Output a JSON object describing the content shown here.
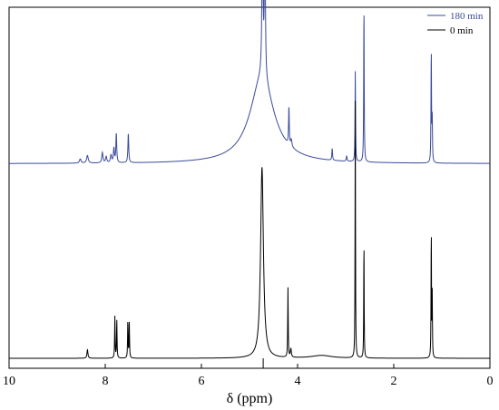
{
  "chart_data": {
    "type": "line",
    "title": "",
    "xlabel": "δ (ppm)",
    "ylabel": "",
    "x_reversed": true,
    "xlim": [
      10,
      0
    ],
    "x_ticks": [
      10,
      8,
      6,
      4,
      2,
      0
    ],
    "x_tick_labels": [
      "10",
      "8",
      "6",
      "4",
      "2",
      "0"
    ],
    "y_ticks_visible": false,
    "grid": false,
    "legend": {
      "position": "top-right"
    },
    "series": [
      {
        "name": "180 min",
        "color": "#3a4a9a",
        "baseline": 0.56,
        "peaks": [
          {
            "ppm": 8.52,
            "height": 0.012,
            "width": 0.02
          },
          {
            "ppm": 8.37,
            "height": 0.022,
            "width": 0.02
          },
          {
            "ppm": 8.06,
            "height": 0.03,
            "width": 0.015
          },
          {
            "ppm": 7.98,
            "height": 0.018,
            "width": 0.015
          },
          {
            "ppm": 7.88,
            "height": 0.022,
            "width": 0.015
          },
          {
            "ppm": 7.82,
            "height": 0.042,
            "width": 0.012
          },
          {
            "ppm": 7.77,
            "height": 0.085,
            "width": 0.01
          },
          {
            "ppm": 7.52,
            "height": 0.085,
            "width": 0.01
          },
          {
            "ppm": 4.74,
            "height": 0.25,
            "width": 0.3
          },
          {
            "ppm": 4.73,
            "height": 0.5,
            "width": 0.012
          },
          {
            "ppm": 4.68,
            "height": 0.53,
            "width": 0.01
          },
          {
            "ppm": 4.18,
            "height": 0.11,
            "width": 0.008
          },
          {
            "ppm": 4.13,
            "height": 0.02,
            "width": 0.015
          },
          {
            "ppm": 3.28,
            "height": 0.035,
            "width": 0.008
          },
          {
            "ppm": 2.98,
            "height": 0.015,
            "width": 0.01
          },
          {
            "ppm": 2.8,
            "height": 0.26,
            "width": 0.006
          },
          {
            "ppm": 2.62,
            "height": 0.46,
            "width": 0.006
          },
          {
            "ppm": 1.22,
            "height": 0.33,
            "width": 0.006
          },
          {
            "ppm": 1.2,
            "height": 0.12,
            "width": 0.006
          }
        ]
      },
      {
        "name": "0 min",
        "color": "#000000",
        "baseline": 0.0,
        "peaks": [
          {
            "ppm": 8.37,
            "height": 0.025,
            "width": 0.012
          },
          {
            "ppm": 7.8,
            "height": 0.12,
            "width": 0.006
          },
          {
            "ppm": 7.76,
            "height": 0.11,
            "width": 0.006
          },
          {
            "ppm": 7.53,
            "height": 0.11,
            "width": 0.006
          },
          {
            "ppm": 7.5,
            "height": 0.1,
            "width": 0.006
          },
          {
            "ppm": 4.74,
            "height": 0.55,
            "width": 0.035
          },
          {
            "ppm": 4.2,
            "height": 0.2,
            "width": 0.006
          },
          {
            "ppm": 4.14,
            "height": 0.025,
            "width": 0.012
          },
          {
            "ppm": 3.5,
            "height": 0.008,
            "width": 0.25
          },
          {
            "ppm": 2.8,
            "height": 0.74,
            "width": 0.005
          },
          {
            "ppm": 2.62,
            "height": 0.35,
            "width": 0.005
          },
          {
            "ppm": 1.22,
            "height": 0.38,
            "width": 0.005
          },
          {
            "ppm": 1.2,
            "height": 0.18,
            "width": 0.005
          }
        ]
      }
    ]
  }
}
